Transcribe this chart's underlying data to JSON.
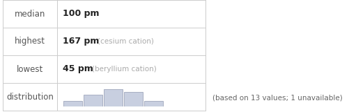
{
  "median_val": "100 pm",
  "highest_val": "167 pm",
  "highest_label": "(cesium cation)",
  "lowest_val": "45 pm",
  "lowest_label": "(beryllium cation)",
  "footnote": "(based on 13 values; 1 unavailable)",
  "hist_bars": [
    1,
    2,
    3,
    2.5,
    1
  ],
  "bar_color": "#c8cfe0",
  "bar_edge_color": "#9099b0",
  "table_line_color": "#cccccc",
  "bg_color": "#ffffff",
  "label_color": "#555555",
  "value_color": "#222222",
  "annot_color": "#aaaaaa",
  "row_labels": [
    "median",
    "highest",
    "lowest",
    "distribution"
  ],
  "footnote_color": "#666666"
}
